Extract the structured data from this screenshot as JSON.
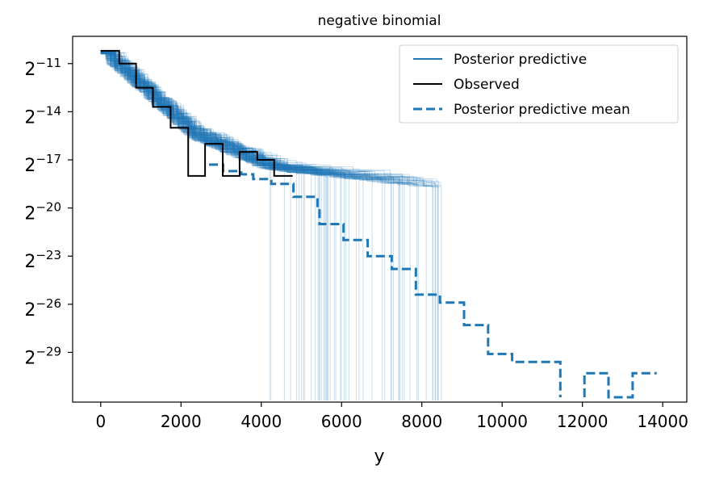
{
  "chart_data": {
    "type": "line",
    "title": "negative binomial",
    "xlabel": "y",
    "ylabel": "",
    "xlim": [
      -700,
      14600
    ],
    "ylim_log2": [
      -32.1,
      -9.3
    ],
    "y_scale": "log2",
    "x_ticks": [
      0,
      2000,
      4000,
      6000,
      8000,
      10000,
      12000,
      14000
    ],
    "x_tick_labels": [
      "0",
      "2000",
      "4000",
      "6000",
      "8000",
      "10000",
      "12000",
      "14000"
    ],
    "y_ticks_log2": [
      -11,
      -14,
      -17,
      -20,
      -23,
      -26,
      -29
    ],
    "y_tick_labels": [
      {
        "base": "2",
        "exp": "−11"
      },
      {
        "base": "2",
        "exp": "−14"
      },
      {
        "base": "2",
        "exp": "−17"
      },
      {
        "base": "2",
        "exp": "−20"
      },
      {
        "base": "2",
        "exp": "−23"
      },
      {
        "base": "2",
        "exp": "−26"
      },
      {
        "base": "2",
        "exp": "−29"
      }
    ],
    "legend": {
      "placement": "top-right",
      "entries": [
        {
          "label": "Posterior predictive",
          "color": "#1f77b4",
          "style": "solid"
        },
        {
          "label": "Observed",
          "color": "#000000",
          "style": "solid"
        },
        {
          "label": "Posterior predictive mean",
          "color": "#1f77b4",
          "style": "dashed"
        }
      ]
    },
    "series": [
      {
        "name": "Observed",
        "color": "#000000",
        "style": "steps",
        "x": [
          0,
          460,
          460,
          880,
          880,
          1300,
          1300,
          1740,
          1740,
          2180,
          2180,
          2600,
          2600,
          3040,
          3040,
          3460,
          3460,
          3900,
          3900,
          4320,
          4320,
          4780
        ],
        "y_log2": [
          -10.2,
          -10.2,
          -11.0,
          -11.0,
          -12.5,
          -12.5,
          -13.7,
          -13.7,
          -15.0,
          -15.0,
          -18.0,
          -18.0,
          -16.0,
          -16.0,
          -18.0,
          -18.0,
          -16.5,
          -16.5,
          -17.0,
          -17.0,
          -18.0,
          -18.0
        ]
      },
      {
        "name": "Posterior predictive mean",
        "color": "#1f77b4",
        "style": "dashed-steps",
        "x": [
          2700,
          3050,
          3050,
          3500,
          3500,
          3800,
          3800,
          4250,
          4250,
          4800,
          4800,
          5400,
          5400,
          5450,
          5450,
          6050,
          6050,
          6050,
          6050,
          6650,
          6650,
          6650,
          6650,
          7250,
          7250,
          7850,
          7850,
          7850,
          7850,
          8450,
          8450,
          9050,
          9050,
          9650,
          9650,
          10250,
          10250,
          11450,
          11450,
          11450,
          12050,
          12050,
          12650,
          12650,
          13250,
          13250,
          13850
        ],
        "y_log2": [
          -17.3,
          -17.3,
          -17.7,
          -17.7,
          -17.9,
          -17.9,
          -18.2,
          -18.2,
          -18.5,
          -18.5,
          -19.3,
          -19.3,
          -20.0,
          -20.0,
          -21.0,
          -21.0,
          -21.0,
          -21.0,
          -22.0,
          -22.0,
          -22.0,
          -22.0,
          -23.0,
          -23.0,
          -23.8,
          -23.8,
          -24.5,
          -24.5,
          -25.4,
          -25.4,
          -25.9,
          -25.9,
          -27.3,
          -27.3,
          -29.1,
          -29.1,
          -29.6,
          -29.6,
          -31.8,
          null,
          -31.8,
          -30.3,
          -30.3,
          -31.8,
          -31.8,
          -30.3,
          -30.3
        ]
      }
    ],
    "posterior_predictive_draws": 120
  }
}
